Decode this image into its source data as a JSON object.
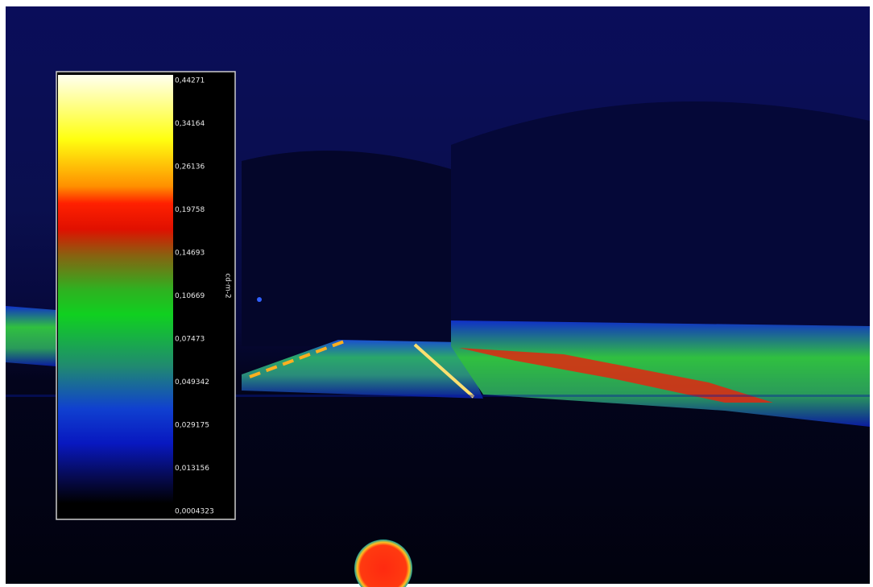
{
  "legend": {
    "unit": "cd·m-2",
    "labels": [
      "0,44271",
      "0,34164",
      "0,26136",
      "0,19758",
      "0,14693",
      "0,10669",
      "0,07473",
      "0,049342",
      "0,029175",
      "0,013156",
      "0,0004323"
    ]
  }
}
